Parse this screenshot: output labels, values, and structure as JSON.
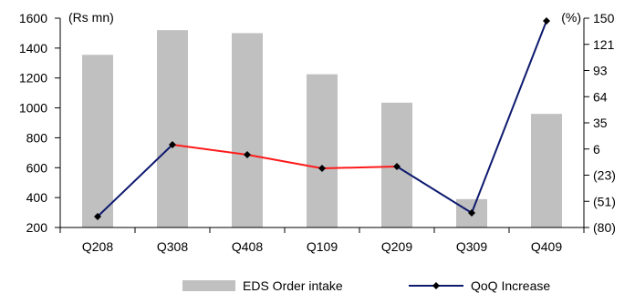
{
  "chart_data": {
    "type": "bar",
    "categories": [
      "Q208",
      "Q308",
      "Q408",
      "Q109",
      "Q209",
      "Q309",
      "Q409"
    ],
    "left_axis": {
      "unit_label": "(Rs mn)",
      "ylim": [
        200,
        1600
      ],
      "ticks": [
        "200",
        "400",
        "600",
        "800",
        "1000",
        "1200",
        "1400",
        "1600"
      ],
      "tick_values": [
        200,
        400,
        600,
        800,
        1000,
        1200,
        1400,
        1600
      ]
    },
    "right_axis": {
      "unit_label": "(%)",
      "ylim": [
        -80,
        150
      ],
      "ticks": [
        "(80)",
        "(51)",
        "(23)",
        "6",
        "35",
        "64",
        "93",
        "121",
        "150"
      ]
    },
    "series": [
      {
        "name": "EDS Order intake",
        "type": "bar",
        "axis": "left",
        "color": "#c0c0c0",
        "values": [
          1355,
          1520,
          1500,
          1225,
          1035,
          390,
          960
        ]
      },
      {
        "name": "QoQ Increase",
        "type": "line",
        "axis": "right",
        "marker": "diamond",
        "color": "#0d1a6e",
        "segment_colors": [
          "#0d1a6e",
          "#ff1a1a",
          "#ff1a1a",
          "#ff1a1a",
          "#0d1a6e",
          "#0d1a6e"
        ],
        "values": [
          -68,
          11,
          0,
          -15,
          -13,
          -64,
          147
        ]
      }
    ],
    "grid": false,
    "legend_position": "bottom"
  }
}
